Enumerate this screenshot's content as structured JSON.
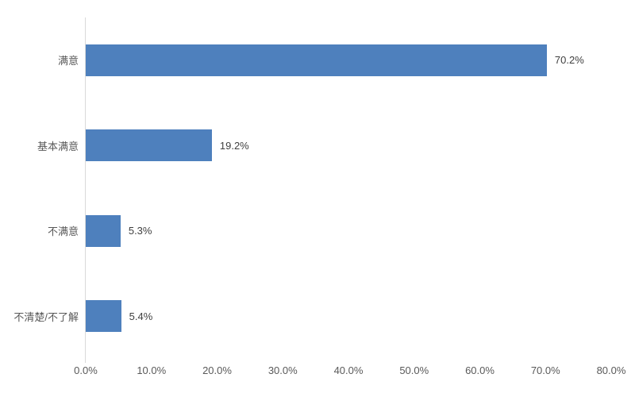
{
  "chart_data": {
    "type": "bar",
    "orientation": "horizontal",
    "title": "",
    "xlabel": "",
    "ylabel": "",
    "categories": [
      "满意",
      "基本满意",
      "不满意",
      "不清楚/不了解"
    ],
    "values": [
      70.2,
      19.2,
      5.3,
      5.4
    ],
    "value_labels": [
      "70.2%",
      "19.2%",
      "5.3%",
      "5.4%"
    ],
    "x_ticks": [
      "0.0%",
      "10.0%",
      "20.0%",
      "30.0%",
      "40.0%",
      "50.0%",
      "60.0%",
      "70.0%",
      "80.0%"
    ],
    "xlim": [
      0,
      80
    ],
    "grid": false,
    "legend": false,
    "colors": {
      "bar": "#4e80bd",
      "axis_line": "#d9d9d9",
      "axis_text": "#595959",
      "value_text": "#404040"
    }
  }
}
